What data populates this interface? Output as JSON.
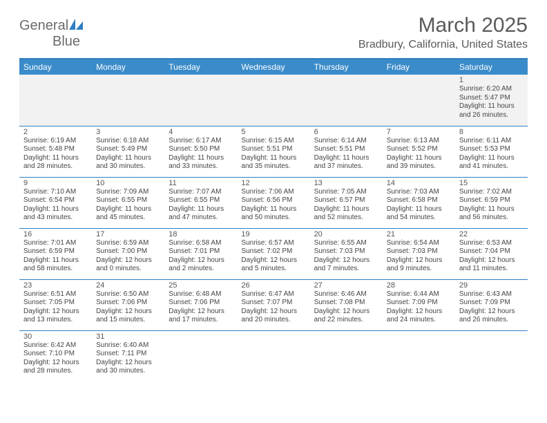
{
  "logo": {
    "text_part1": "General",
    "text_part2": "Blue",
    "sail_color": "#2f7fc2"
  },
  "title": "March 2025",
  "location": "Bradbury, California, United States",
  "colors": {
    "header_bg": "#3a8bc9",
    "header_text": "#ffffff",
    "rule": "#2f7fc2",
    "weekstart_bg": "#f2f2f2",
    "text": "#444444"
  },
  "day_headers": [
    "Sunday",
    "Monday",
    "Tuesday",
    "Wednesday",
    "Thursday",
    "Friday",
    "Saturday"
  ],
  "weeks": [
    [
      null,
      null,
      null,
      null,
      null,
      null,
      {
        "n": "1",
        "sr": "Sunrise: 6:20 AM",
        "ss": "Sunset: 5:47 PM",
        "dl1": "Daylight: 11 hours",
        "dl2": "and 26 minutes."
      }
    ],
    [
      {
        "n": "2",
        "sr": "Sunrise: 6:19 AM",
        "ss": "Sunset: 5:48 PM",
        "dl1": "Daylight: 11 hours",
        "dl2": "and 28 minutes."
      },
      {
        "n": "3",
        "sr": "Sunrise: 6:18 AM",
        "ss": "Sunset: 5:49 PM",
        "dl1": "Daylight: 11 hours",
        "dl2": "and 30 minutes."
      },
      {
        "n": "4",
        "sr": "Sunrise: 6:17 AM",
        "ss": "Sunset: 5:50 PM",
        "dl1": "Daylight: 11 hours",
        "dl2": "and 33 minutes."
      },
      {
        "n": "5",
        "sr": "Sunrise: 6:15 AM",
        "ss": "Sunset: 5:51 PM",
        "dl1": "Daylight: 11 hours",
        "dl2": "and 35 minutes."
      },
      {
        "n": "6",
        "sr": "Sunrise: 6:14 AM",
        "ss": "Sunset: 5:51 PM",
        "dl1": "Daylight: 11 hours",
        "dl2": "and 37 minutes."
      },
      {
        "n": "7",
        "sr": "Sunrise: 6:13 AM",
        "ss": "Sunset: 5:52 PM",
        "dl1": "Daylight: 11 hours",
        "dl2": "and 39 minutes."
      },
      {
        "n": "8",
        "sr": "Sunrise: 6:11 AM",
        "ss": "Sunset: 5:53 PM",
        "dl1": "Daylight: 11 hours",
        "dl2": "and 41 minutes."
      }
    ],
    [
      {
        "n": "9",
        "sr": "Sunrise: 7:10 AM",
        "ss": "Sunset: 6:54 PM",
        "dl1": "Daylight: 11 hours",
        "dl2": "and 43 minutes."
      },
      {
        "n": "10",
        "sr": "Sunrise: 7:09 AM",
        "ss": "Sunset: 6:55 PM",
        "dl1": "Daylight: 11 hours",
        "dl2": "and 45 minutes."
      },
      {
        "n": "11",
        "sr": "Sunrise: 7:07 AM",
        "ss": "Sunset: 6:55 PM",
        "dl1": "Daylight: 11 hours",
        "dl2": "and 47 minutes."
      },
      {
        "n": "12",
        "sr": "Sunrise: 7:06 AM",
        "ss": "Sunset: 6:56 PM",
        "dl1": "Daylight: 11 hours",
        "dl2": "and 50 minutes."
      },
      {
        "n": "13",
        "sr": "Sunrise: 7:05 AM",
        "ss": "Sunset: 6:57 PM",
        "dl1": "Daylight: 11 hours",
        "dl2": "and 52 minutes."
      },
      {
        "n": "14",
        "sr": "Sunrise: 7:03 AM",
        "ss": "Sunset: 6:58 PM",
        "dl1": "Daylight: 11 hours",
        "dl2": "and 54 minutes."
      },
      {
        "n": "15",
        "sr": "Sunrise: 7:02 AM",
        "ss": "Sunset: 6:59 PM",
        "dl1": "Daylight: 11 hours",
        "dl2": "and 56 minutes."
      }
    ],
    [
      {
        "n": "16",
        "sr": "Sunrise: 7:01 AM",
        "ss": "Sunset: 6:59 PM",
        "dl1": "Daylight: 11 hours",
        "dl2": "and 58 minutes."
      },
      {
        "n": "17",
        "sr": "Sunrise: 6:59 AM",
        "ss": "Sunset: 7:00 PM",
        "dl1": "Daylight: 12 hours",
        "dl2": "and 0 minutes."
      },
      {
        "n": "18",
        "sr": "Sunrise: 6:58 AM",
        "ss": "Sunset: 7:01 PM",
        "dl1": "Daylight: 12 hours",
        "dl2": "and 2 minutes."
      },
      {
        "n": "19",
        "sr": "Sunrise: 6:57 AM",
        "ss": "Sunset: 7:02 PM",
        "dl1": "Daylight: 12 hours",
        "dl2": "and 5 minutes."
      },
      {
        "n": "20",
        "sr": "Sunrise: 6:55 AM",
        "ss": "Sunset: 7:03 PM",
        "dl1": "Daylight: 12 hours",
        "dl2": "and 7 minutes."
      },
      {
        "n": "21",
        "sr": "Sunrise: 6:54 AM",
        "ss": "Sunset: 7:03 PM",
        "dl1": "Daylight: 12 hours",
        "dl2": "and 9 minutes."
      },
      {
        "n": "22",
        "sr": "Sunrise: 6:53 AM",
        "ss": "Sunset: 7:04 PM",
        "dl1": "Daylight: 12 hours",
        "dl2": "and 11 minutes."
      }
    ],
    [
      {
        "n": "23",
        "sr": "Sunrise: 6:51 AM",
        "ss": "Sunset: 7:05 PM",
        "dl1": "Daylight: 12 hours",
        "dl2": "and 13 minutes."
      },
      {
        "n": "24",
        "sr": "Sunrise: 6:50 AM",
        "ss": "Sunset: 7:06 PM",
        "dl1": "Daylight: 12 hours",
        "dl2": "and 15 minutes."
      },
      {
        "n": "25",
        "sr": "Sunrise: 6:48 AM",
        "ss": "Sunset: 7:06 PM",
        "dl1": "Daylight: 12 hours",
        "dl2": "and 17 minutes."
      },
      {
        "n": "26",
        "sr": "Sunrise: 6:47 AM",
        "ss": "Sunset: 7:07 PM",
        "dl1": "Daylight: 12 hours",
        "dl2": "and 20 minutes."
      },
      {
        "n": "27",
        "sr": "Sunrise: 6:46 AM",
        "ss": "Sunset: 7:08 PM",
        "dl1": "Daylight: 12 hours",
        "dl2": "and 22 minutes."
      },
      {
        "n": "28",
        "sr": "Sunrise: 6:44 AM",
        "ss": "Sunset: 7:09 PM",
        "dl1": "Daylight: 12 hours",
        "dl2": "and 24 minutes."
      },
      {
        "n": "29",
        "sr": "Sunrise: 6:43 AM",
        "ss": "Sunset: 7:09 PM",
        "dl1": "Daylight: 12 hours",
        "dl2": "and 26 minutes."
      }
    ],
    [
      {
        "n": "30",
        "sr": "Sunrise: 6:42 AM",
        "ss": "Sunset: 7:10 PM",
        "dl1": "Daylight: 12 hours",
        "dl2": "and 28 minutes."
      },
      {
        "n": "31",
        "sr": "Sunrise: 6:40 AM",
        "ss": "Sunset: 7:11 PM",
        "dl1": "Daylight: 12 hours",
        "dl2": "and 30 minutes."
      },
      null,
      null,
      null,
      null,
      null
    ]
  ]
}
